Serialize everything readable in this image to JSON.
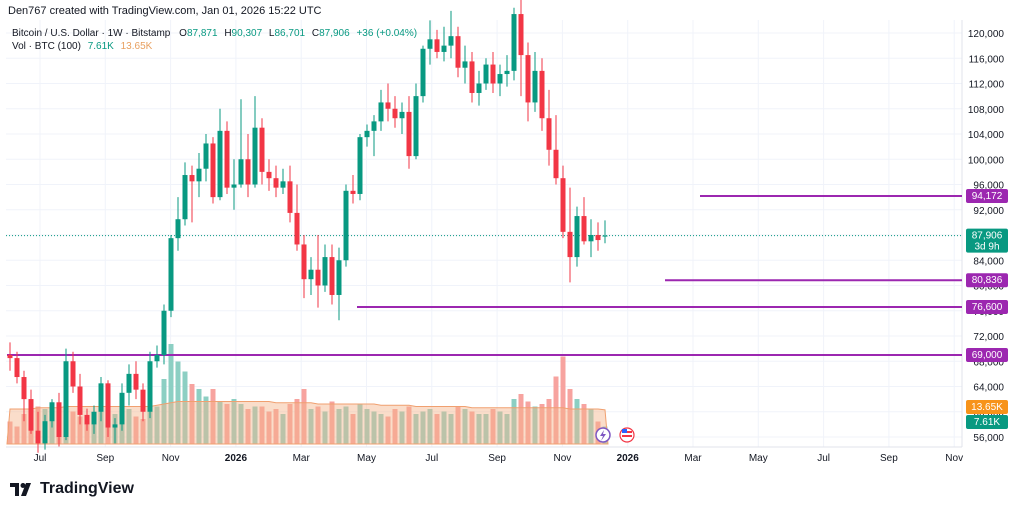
{
  "header": {
    "created_by": "Den767 created with TradingView.com, Jan 01, 2026 15:22 UTC"
  },
  "legend": {
    "symbol": "Bitcoin / U.S. Dollar · 1W · Bitstamp",
    "o_label": "O",
    "o_value": "87,871",
    "h_label": "H",
    "h_value": "90,307",
    "l_label": "L",
    "l_value": "86,701",
    "c_label": "C",
    "c_value": "87,906",
    "change": "+36 (+0.04%)",
    "vol_label": "Vol · BTC (100)",
    "vol_value": "7.61K",
    "vol_ma": "13.65K"
  },
  "footer": {
    "brand": "TradingView"
  },
  "chart_data": {
    "type": "candlestick",
    "y_ticks": [
      "56,000",
      "60,000",
      "64,000",
      "68,000",
      "72,000",
      "76,000",
      "80,000",
      "84,000",
      "88,000",
      "92,000",
      "96,000",
      "100,000",
      "104,000",
      "108,000",
      "112,000",
      "116,000",
      "120,000"
    ],
    "ylim": [
      54000,
      122500
    ],
    "x_ticks": [
      "Jul",
      "Sep",
      "Nov",
      "2026",
      "Mar",
      "May",
      "Jul",
      "Sep",
      "Nov",
      "2026",
      "Mar",
      "May",
      "Jul",
      "Sep",
      "Nov"
    ],
    "x_tick_bold": [
      false,
      false,
      false,
      true,
      false,
      false,
      false,
      false,
      false,
      true,
      false,
      false,
      false,
      false,
      false
    ],
    "horizontal_levels": [
      {
        "value": 94172,
        "label": "94,172",
        "start_candle": 99
      },
      {
        "value": 80836,
        "label": "80,836",
        "start_candle": 94
      },
      {
        "value": 76600,
        "label": "76,600",
        "start_candle": 50
      },
      {
        "value": 69000,
        "label": "69,000",
        "start_candle": 0
      }
    ],
    "current_price": {
      "value": 87906,
      "label": "87,906",
      "countdown": "3d 9h"
    },
    "volume_labels": {
      "ma": "13.65K",
      "last": "7.61K"
    },
    "colors": {
      "up": "#089981",
      "down": "#f23645",
      "level": "#9c27b0",
      "grid": "#f0f3fa",
      "vol_up": "#8ccfc3",
      "vol_down": "#f7a39f",
      "vol_ma": "#f5b38a"
    },
    "candles": [
      [
        69000,
        71000,
        66500,
        68500
      ],
      [
        68500,
        69500,
        64500,
        65500
      ],
      [
        65500,
        66500,
        58500,
        62000
      ],
      [
        62000,
        63500,
        56500,
        57000
      ],
      [
        57000,
        60000,
        53500,
        55000
      ],
      [
        55000,
        59500,
        54000,
        58500
      ],
      [
        58500,
        62000,
        57500,
        61500
      ],
      [
        61500,
        63000,
        54500,
        56000
      ],
      [
        56000,
        70000,
        55500,
        68000
      ],
      [
        68000,
        69500,
        63000,
        64000
      ],
      [
        64000,
        66000,
        58000,
        59500
      ],
      [
        59500,
        60500,
        57000,
        58000
      ],
      [
        58000,
        61000,
        56500,
        60000
      ],
      [
        60000,
        65500,
        58500,
        64500
      ],
      [
        64500,
        65000,
        56000,
        57500
      ],
      [
        57500,
        59000,
        55000,
        58000
      ],
      [
        58000,
        64500,
        57000,
        63000
      ],
      [
        63000,
        67500,
        61000,
        66000
      ],
      [
        66000,
        68000,
        62000,
        63500
      ],
      [
        63500,
        64500,
        58500,
        60000
      ],
      [
        60000,
        69500,
        59000,
        68000
      ],
      [
        68000,
        70500,
        67000,
        69000
      ],
      [
        69000,
        77000,
        67500,
        76000
      ],
      [
        76000,
        88000,
        75000,
        87500
      ],
      [
        87500,
        94000,
        85500,
        90500
      ],
      [
        90500,
        99500,
        89500,
        97500
      ],
      [
        97500,
        99000,
        90000,
        96500
      ],
      [
        96500,
        101000,
        94000,
        98500
      ],
      [
        98500,
        104000,
        96500,
        102500
      ],
      [
        102500,
        103500,
        93000,
        94000
      ],
      [
        94000,
        108000,
        93500,
        104500
      ],
      [
        104500,
        106000,
        94500,
        95500
      ],
      [
        95500,
        100000,
        92000,
        96000
      ],
      [
        96000,
        109500,
        95500,
        100000
      ],
      [
        100000,
        104000,
        94000,
        96000
      ],
      [
        96000,
        110000,
        95500,
        105000
      ],
      [
        105000,
        106500,
        96000,
        98000
      ],
      [
        98000,
        100000,
        95000,
        97000
      ],
      [
        97000,
        99000,
        94000,
        95500
      ],
      [
        95500,
        98500,
        94500,
        96500
      ],
      [
        96500,
        99000,
        90000,
        91500
      ],
      [
        91500,
        96000,
        85500,
        86500
      ],
      [
        86500,
        88000,
        78000,
        81000
      ],
      [
        81000,
        84500,
        78500,
        82500
      ],
      [
        82500,
        88000,
        76500,
        80000
      ],
      [
        80000,
        86500,
        79000,
        84500
      ],
      [
        84500,
        86500,
        77000,
        78500
      ],
      [
        78500,
        86000,
        74500,
        84000
      ],
      [
        84000,
        96000,
        83000,
        95000
      ],
      [
        95000,
        97500,
        93000,
        94500
      ],
      [
        94500,
        104000,
        93500,
        103500
      ],
      [
        103500,
        105500,
        102000,
        104500
      ],
      [
        104500,
        107000,
        100500,
        106000
      ],
      [
        106000,
        111000,
        104500,
        109000
      ],
      [
        109000,
        112000,
        106000,
        108000
      ],
      [
        108000,
        110000,
        105000,
        106500
      ],
      [
        106500,
        109000,
        104000,
        107500
      ],
      [
        107500,
        110000,
        98500,
        100500
      ],
      [
        100500,
        112000,
        100000,
        110000
      ],
      [
        110000,
        118000,
        109000,
        117500
      ],
      [
        117500,
        122000,
        115000,
        119000
      ],
      [
        119000,
        120500,
        116000,
        117000
      ],
      [
        117000,
        121000,
        115500,
        118000
      ],
      [
        118000,
        123500,
        116000,
        119500
      ],
      [
        119500,
        121000,
        113000,
        114500
      ],
      [
        114500,
        118000,
        112000,
        115500
      ],
      [
        115500,
        117000,
        109000,
        110500
      ],
      [
        110500,
        114000,
        108500,
        112000
      ],
      [
        112000,
        116000,
        111000,
        115000
      ],
      [
        115000,
        117000,
        110500,
        112000
      ],
      [
        112000,
        115000,
        110000,
        113500
      ],
      [
        113500,
        116500,
        111500,
        114000
      ],
      [
        114000,
        124000,
        112500,
        123000
      ],
      [
        123000,
        126000,
        110000,
        116500
      ],
      [
        116500,
        118500,
        106000,
        109000
      ],
      [
        109000,
        117000,
        107500,
        114000
      ],
      [
        114000,
        116000,
        104500,
        106500
      ],
      [
        106500,
        111000,
        99000,
        101500
      ],
      [
        101500,
        107000,
        96000,
        97000
      ],
      [
        97000,
        99000,
        87500,
        88500
      ],
      [
        88500,
        95500,
        80500,
        84500
      ],
      [
        84500,
        92500,
        83000,
        91000
      ],
      [
        91000,
        94000,
        86500,
        87000
      ],
      [
        87000,
        90500,
        84500,
        88000
      ],
      [
        88000,
        90000,
        85500,
        87200
      ],
      [
        87871,
        90307,
        86701,
        87906
      ]
    ],
    "volumes": [
      9,
      7,
      12,
      18,
      15,
      14,
      12,
      16,
      24,
      13,
      11,
      10,
      12,
      14,
      16,
      12,
      13,
      14,
      11,
      10,
      17,
      15,
      26,
      40,
      33,
      29,
      24,
      22,
      19,
      22,
      17,
      16,
      18,
      16,
      14,
      15,
      15,
      13,
      14,
      12,
      16,
      18,
      22,
      14,
      15,
      13,
      17,
      14,
      15,
      12,
      16,
      14,
      13,
      12,
      11,
      14,
      13,
      15,
      12,
      13,
      14,
      12,
      13,
      12,
      15,
      14,
      13,
      12,
      12,
      14,
      13,
      12,
      18,
      20,
      17,
      15,
      16,
      18,
      27,
      35,
      22,
      18,
      16,
      14,
      9,
      7
    ],
    "vol_ma": [
      14,
      14,
      14,
      14,
      14.5,
      14.5,
      14.5,
      14.5,
      15,
      15,
      15,
      15,
      15,
      15,
      15,
      15,
      15,
      15,
      15,
      15,
      15,
      15.5,
      16,
      16.5,
      17,
      17,
      17,
      17,
      17,
      17,
      17,
      17,
      17,
      17,
      17,
      17,
      17,
      17,
      16.5,
      16.5,
      16.5,
      16.5,
      16.5,
      16.5,
      16,
      16,
      16,
      16,
      16,
      16,
      16,
      16,
      16,
      15.5,
      15.5,
      15.5,
      15.5,
      15.5,
      15,
      15,
      15,
      15,
      15,
      15,
      15,
      15,
      14.5,
      14.5,
      14.5,
      14.5,
      14.5,
      14.5,
      14.5,
      14.5,
      14.5,
      14.5,
      14.5,
      14.5,
      14.5,
      14.5,
      14,
      14,
      14,
      14,
      14,
      13.65
    ]
  }
}
